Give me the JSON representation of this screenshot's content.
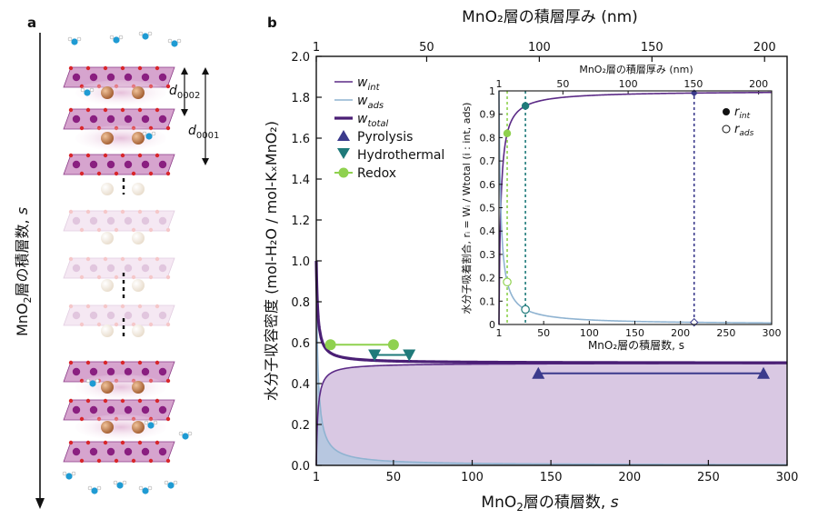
{
  "panel_a": {
    "label": "a",
    "axis_label_main": "MnO",
    "axis_label_sub": "2",
    "axis_label_rest": "層の積層数, ",
    "axis_label_var": "s",
    "d0002_base": "d",
    "d0002_sub": "0002",
    "d0001_base": "d",
    "d0001_sub": "0001"
  },
  "panel_b": {
    "label": "b",
    "top_axis_label": "MnO₂層の積層厚み (nm)",
    "top_ticks": [
      "1",
      "50",
      "100",
      "150",
      "200"
    ],
    "x_label_pre": "MnO",
    "x_label_sub": "2",
    "x_label_post": "層の積層数, ",
    "x_label_var": "s",
    "y_label": "水分子収容密度 (mol-H₂O / mol-KₓMnO₂)",
    "x_ticks": [
      "1",
      "50",
      "100",
      "150",
      "200",
      "250",
      "300"
    ],
    "y_ticks": [
      "0.0",
      "0.2",
      "0.4",
      "0.6",
      "0.8",
      "1.0",
      "1.2",
      "1.4",
      "1.6",
      "1.8",
      "2.0"
    ],
    "legend": {
      "w_int_base": "w",
      "w_int_sub": "int",
      "w_ads_base": "w",
      "w_ads_sub": "ads",
      "w_total_base": "w",
      "w_total_sub": "total",
      "pyrolysis": "Pyrolysis",
      "hydrothermal": "Hydrothermal",
      "redox": "Redox"
    },
    "colors": {
      "w_int": "#5b2a86",
      "w_ads": "#8fb3d1",
      "w_total": "#4a1f75",
      "int_fill": "#d9c8e3",
      "ads_fill": "#b3c7df",
      "pyrolysis": "#3b3a8c",
      "hydrothermal": "#1f7a7a",
      "redox": "#8fd14f"
    }
  },
  "inset": {
    "top_axis_label": "MnO₂層の積層厚み (nm)",
    "top_ticks": [
      "1",
      "50",
      "100",
      "150",
      "200"
    ],
    "x_label": "MnO₂層の積層数, s",
    "y_label": "水分子吸着割合, rᵢ = Wᵢ / Wtotal (i : int, ads)",
    "x_ticks": [
      "1",
      "50",
      "100",
      "150",
      "200",
      "250",
      "300"
    ],
    "y_ticks": [
      "0",
      "0.1",
      "0.2",
      "0.3",
      "0.4",
      "0.5",
      "0.6",
      "0.7",
      "0.8",
      "0.9",
      "1"
    ],
    "legend_r_int_base": "r",
    "legend_r_int_sub": "int",
    "legend_r_ads_base": "r",
    "legend_r_ads_sub": "ads"
  },
  "chart_data": [
    {
      "type": "line",
      "title": "",
      "xlabel": "MnO₂層の積層数, s",
      "ylabel": "水分子収容密度 (mol-H₂O / mol-KₓMnO₂)",
      "xlim": [
        1,
        300
      ],
      "ylim": [
        0,
        2.0
      ],
      "x2label": "MnO₂層の積層厚み (nm)",
      "x2lim": [
        1,
        210
      ],
      "legend": "top-left",
      "grid": false,
      "model": {
        "int_limit": 0.5,
        "ads_coeff": 1.0
      },
      "series": [
        {
          "name": "w_int",
          "formula": "0.5*(1-1/s)"
        },
        {
          "name": "w_ads",
          "formula": "1/s"
        },
        {
          "name": "w_total",
          "formula": "0.5*(1-1/s)+1/s"
        }
      ],
      "ranges": [
        {
          "name": "Pyrolysis",
          "y": 0.45,
          "x": [
            142,
            285
          ]
        },
        {
          "name": "Hydrothermal",
          "y": 0.54,
          "x": [
            38,
            60
          ]
        },
        {
          "name": "Redox",
          "y": 0.59,
          "x": [
            10,
            50
          ]
        }
      ]
    },
    {
      "type": "line",
      "title": "",
      "xlabel": "MnO₂層の積層数, s",
      "ylabel": "水分子吸着割合, rᵢ = Wᵢ / Wtotal (i : int, ads)",
      "xlim": [
        1,
        300
      ],
      "ylim": [
        0,
        1
      ],
      "x2label": "MnO₂層の積層厚み (nm)",
      "x2lim": [
        1,
        210
      ],
      "legend": "top-right",
      "series": [
        {
          "name": "r_int",
          "formula": "(s-1)/(s+1)"
        },
        {
          "name": "r_ads",
          "formula": "2/(s+1)"
        }
      ],
      "markers": [
        {
          "name": "Redox",
          "s": 10
        },
        {
          "name": "Hydrothermal",
          "s": 30
        },
        {
          "name": "Pyrolysis",
          "s": 215
        }
      ]
    }
  ]
}
